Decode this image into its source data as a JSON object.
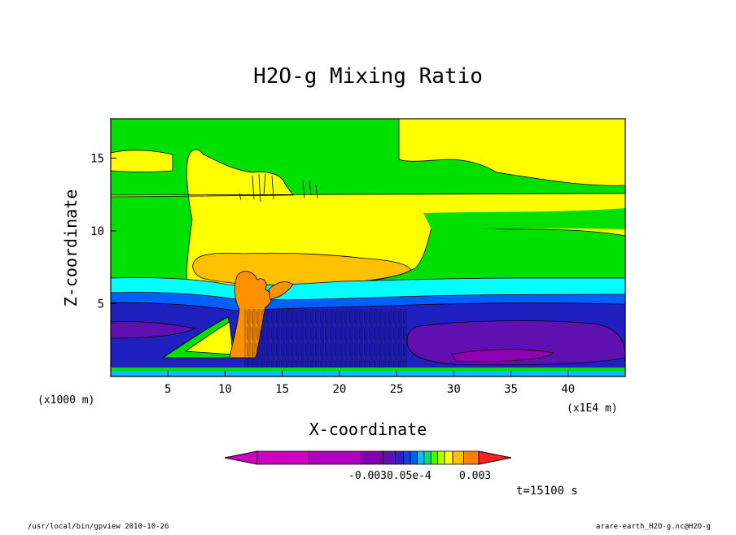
{
  "chart_data": {
    "type": "heatmap",
    "title": "H2O-g Mixing Ratio",
    "xlabel": "X-coordinate",
    "ylabel": "Z-coordinate",
    "x_units": "(x1E4 m)",
    "y_units": "(x1000 m)",
    "x_ticks": [
      "5",
      "10",
      "15",
      "20",
      "25",
      "30",
      "35",
      "40"
    ],
    "y_ticks": [
      "5",
      "10",
      "15"
    ],
    "xlim": [
      0,
      45
    ],
    "ylim": [
      0,
      17.7
    ],
    "colorbar_labels": [
      "-0.003",
      "0.0",
      "5e-4",
      "0.003"
    ],
    "colorbar_label_overlap": "-0.0030.05e-4",
    "colorbar_colors": [
      "#d000c0",
      "#b000c0",
      "#8000b0",
      "#6010b0",
      "#3020c0",
      "#1040e0",
      "#0060ff",
      "#00c0ff",
      "#00e080",
      "#40ff00",
      "#c0ff00",
      "#ffff00",
      "#ffc000",
      "#ff8000",
      "#ff2020"
    ],
    "levels_colors": {
      "upper_background": "#00e000",
      "high_band": "#ffff00",
      "anvil": "#ffc000",
      "core": "#ff9000",
      "cyan_band": "#00ffff",
      "blue_band": "#0060ff",
      "dark_blue": "#2020c0",
      "purple": "#6010b0",
      "deep_purple": "#9000b0"
    },
    "time_label": "t=15100 s"
  },
  "footer": {
    "left": "/usr/local/bin/gpview  2010-10-26",
    "right": "arare-earth_H2O-g.nc@H2O-g"
  }
}
